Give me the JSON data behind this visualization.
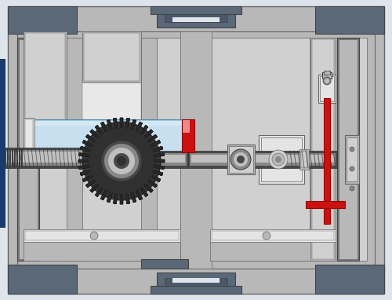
{
  "bg_color": "#dde4ec",
  "main_gray": "#b8b8b8",
  "dark_gray": "#787878",
  "med_gray": "#a0a0a0",
  "light_gray": "#d0d0d0",
  "very_light_gray": "#e8e8e8",
  "dark_blue_gray": "#5a6878",
  "darker_blue_gray": "#4a5868",
  "light_blue": "#a8cce0",
  "lighter_blue": "#c8dff0",
  "red": "#cc1111",
  "light_red": "#ee8888",
  "dark_gear": "#383838",
  "shaft_dark": "#484848",
  "shaft_mid": "#888888",
  "shaft_light": "#c0c0c0",
  "white_part": "#e4e4e4",
  "hatch_dark": "#1a1a1a",
  "blue_accent": "#1a3a6e",
  "outline": "#666666",
  "dark_outline": "#444444",
  "fig_width": 5.0,
  "fig_height": 3.82
}
